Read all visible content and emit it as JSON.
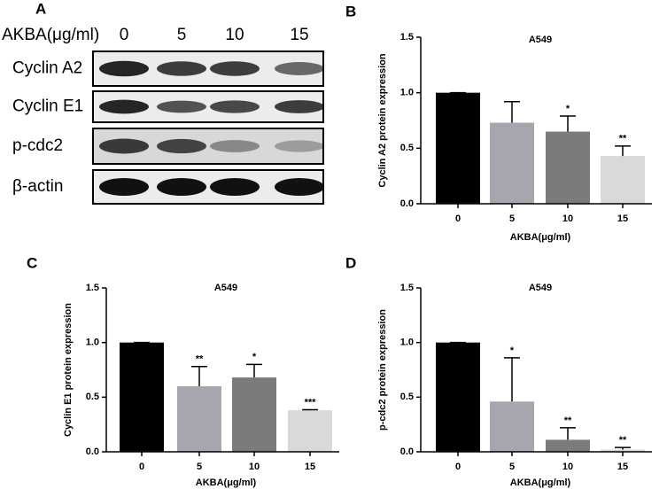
{
  "blot": {
    "panel": "A",
    "treatment_label": "AKBA(μg/ml)",
    "doses": [
      "0",
      "5",
      "10",
      "15"
    ],
    "rows": [
      "Cyclin A2",
      "Cyclin E1",
      "p-cdc2",
      "β-actin"
    ]
  },
  "chart_data": [
    {
      "type": "bar",
      "panel": "B",
      "title": "A549",
      "y_label": "Cyclin A2 protein expression",
      "x_label": "AKBA(μg/ml)",
      "categories": [
        "0",
        "5",
        "10",
        "15"
      ],
      "values": [
        1.0,
        0.73,
        0.65,
        0.43
      ],
      "errors": [
        0,
        0.19,
        0.14,
        0.09
      ],
      "annotations": [
        null,
        null,
        "*",
        "**"
      ],
      "colors": [
        "#000000",
        "#a6a6ae",
        "#7b7b7b",
        "#d9d9d9"
      ],
      "ylim": [
        0,
        1.5
      ],
      "yticks": [
        {
          "value": 0,
          "label": "0.0"
        },
        0.5,
        {
          "value": 1,
          "label": "1.0"
        },
        1.5
      ]
    },
    {
      "type": "bar",
      "panel": "C",
      "title": "A549",
      "y_label": "Cyclin E1 protein expression",
      "x_label": "AKBA(μg/ml)",
      "categories": [
        "0",
        "5",
        "10",
        "15"
      ],
      "values": [
        1.0,
        0.6,
        0.68,
        0.38
      ],
      "errors": [
        0,
        0.18,
        0.12,
        0.005
      ],
      "annotations": [
        null,
        "**",
        "*",
        "***"
      ],
      "colors": [
        "#000000",
        "#a6a6ae",
        "#7b7b7b",
        "#d9d9d9"
      ],
      "ylim": [
        0,
        1.5
      ],
      "yticks": [
        {
          "value": 0,
          "label": "0.0"
        },
        0.5,
        {
          "value": 1,
          "label": "1.0"
        },
        1.5
      ]
    },
    {
      "type": "bar",
      "panel": "D",
      "title": "A549",
      "y_label": "p-cdc2  protein expression",
      "x_label": "AKBA(μg/ml)",
      "categories": [
        "0",
        "5",
        "10",
        "15"
      ],
      "values": [
        1.0,
        0.46,
        0.11,
        0.02
      ],
      "errors": [
        0,
        0.4,
        0.11,
        0.02
      ],
      "annotations": [
        null,
        "*",
        "**",
        "**"
      ],
      "colors": [
        "#000000",
        "#a6a6ae",
        "#7b7b7b",
        "#d9d9d9"
      ],
      "ylim": [
        0,
        1.5
      ],
      "yticks": [
        {
          "value": 0,
          "label": "0.0"
        },
        0.5,
        {
          "value": 1,
          "label": "1.0"
        },
        1.5
      ]
    }
  ]
}
